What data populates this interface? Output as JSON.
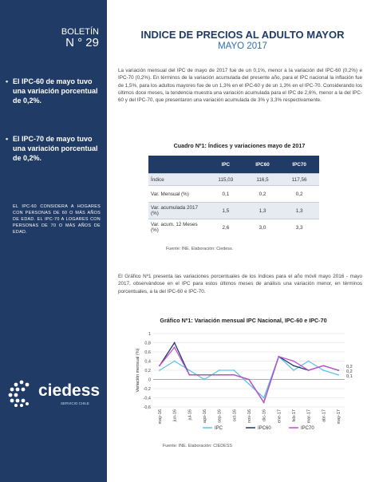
{
  "sidebar": {
    "bulletin_label": "BOLETÍN",
    "bulletin_number": "N ° 29",
    "bullet1": "El IPC-60 de mayo tuvo una variación porcentual de 0,2%.",
    "bullet2": "El IPC-70 de mayo tuvo una variación porcentual de 0,2%.",
    "note": "EL IPC-60 CONSIDERA A HOGARES CON PERSONAS DE 60 O MÁS AÑOS DE EDAD. EL IPC-70 A LOGARES CON PERSONAS DE 70 O MÁS AÑOS DE EDAD.",
    "logo_text": "ciedess",
    "logo_sub": "SERVICIO CHILE"
  },
  "header": {
    "title": "INDICE DE PRECIOS AL ADULTO MAYOR",
    "subtitle": "MAYO 2017"
  },
  "paragraph1": "La variación mensual del IPC de mayo de 2017 fue de un 0,1%, menor a la variación del IPC-60 (0,2%) e IPC-70 (0,2%). En términos de la variación acumulada del presente año, para el IPC nacional la inflación fue de 1,5%, para los adultos mayores fue de un 1,3% en el IPC-60 y de un 1,3% en el IPC-70. Considerando los últimos doce meses, la tendencia muestra una variación acumulada para el IPC de 2,6%, menor a la del IPC-60 y del IPC-70, que presentaron una variación acumulada de 3% y 3,3% respectivamente.",
  "table": {
    "title": "Cuadro Nº1: Índices y variaciones mayo de 2017",
    "headers": [
      "",
      "IPC",
      "IPC60",
      "IPC70"
    ],
    "rows": [
      {
        "label": "Índice",
        "ipc": "115,03",
        "ipc60": "116,5",
        "ipc70": "117,56"
      },
      {
        "label": "Var. Mensual (%)",
        "ipc": "0,1",
        "ipc60": "0,2",
        "ipc70": "0,2"
      },
      {
        "label": "Var. acumulada 2017 (%)",
        "ipc": "1,5",
        "ipc60": "1,3",
        "ipc70": "1,3"
      },
      {
        "label": "Var. acum. 12 Meses (%)",
        "ipc": "2,6",
        "ipc60": "3,0",
        "ipc70": "3,3"
      }
    ],
    "source": "Fuente: INE. Elaboración: Ciedess."
  },
  "paragraph2": "El Gráfico Nº1 presenta las variaciones porcentuales de los índices para el año móvil mayo 2016 - mayo 2017, observándose en el IPC para estos últimos meses de análisis una variación menor, en términos porcentuales, a la del IPC-60 e IPC-70.",
  "chart_title": "Gráfico Nº1: Variación mensual IPC Nacional, IPC-60 e IPC-70",
  "chart_source": "Fuente: INE. Elaboración: CIEDESS",
  "chart_data": {
    "type": "line",
    "title": "Gráfico Nº1: Variación mensual IPC Nacional, IPC-60 e IPC-70",
    "xlabel": "",
    "ylabel": "Variación mensual (%)",
    "x": [
      "may-16",
      "jun-16",
      "jul-16",
      "ago-16",
      "sep-16",
      "oct-16",
      "nov-16",
      "dic-16",
      "ene-17",
      "feb-17",
      "mar-17",
      "abr-17",
      "may-17"
    ],
    "ylim": [
      -0.6,
      1.0
    ],
    "yticks": [
      "1",
      "0,8",
      "0,6",
      "0,4",
      "0,2",
      "0",
      "-0,2",
      "-0,4",
      "-0,6"
    ],
    "grid": true,
    "legend": "bottom",
    "end_labels": [
      "0,2",
      "0,2",
      "0,1"
    ],
    "series": [
      {
        "name": "IPC",
        "color": "#5fc3e8",
        "values": [
          0.2,
          0.4,
          0.2,
          0.0,
          0.2,
          0.2,
          -0.1,
          -0.4,
          0.5,
          0.2,
          0.4,
          0.2,
          0.1
        ]
      },
      {
        "name": "IPC60",
        "color": "#1f3b66",
        "values": [
          0.3,
          0.8,
          0.1,
          0.1,
          0.1,
          0.1,
          0.0,
          -0.5,
          0.5,
          0.3,
          0.2,
          0.3,
          0.2
        ]
      },
      {
        "name": "IPC70",
        "color": "#c44fd0",
        "values": [
          0.3,
          0.7,
          0.1,
          0.1,
          0.1,
          0.1,
          0.0,
          -0.5,
          0.5,
          0.4,
          0.2,
          0.3,
          0.2
        ]
      }
    ]
  }
}
